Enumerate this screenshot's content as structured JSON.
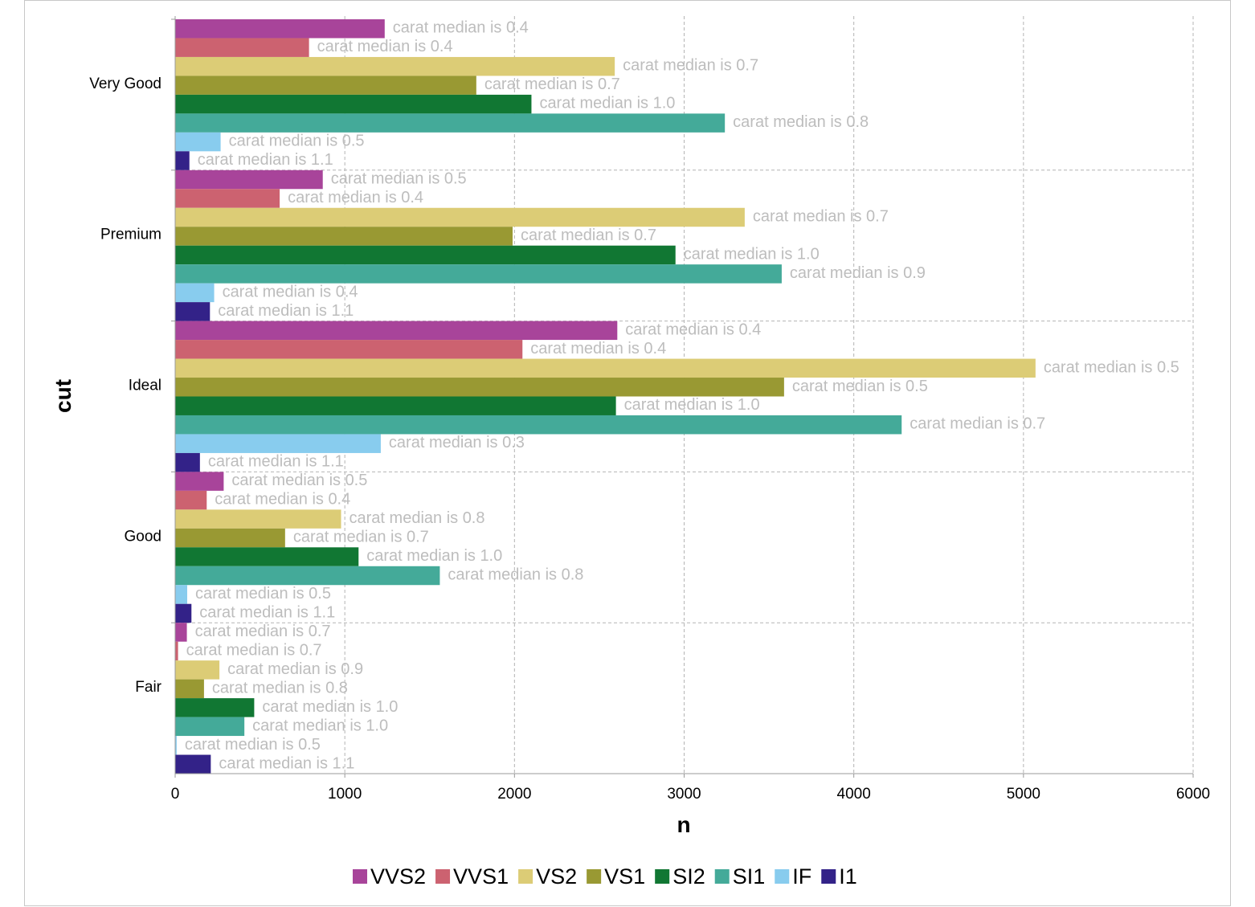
{
  "chart_data": {
    "type": "bar",
    "orientation": "horizontal",
    "xlabel": "n",
    "ylabel": "cut",
    "xlim": [
      0,
      6000
    ],
    "xticks": [
      0,
      1000,
      2000,
      3000,
      4000,
      5000,
      6000
    ],
    "grid": true,
    "legend_position": "bottom",
    "categories": [
      "Very Good",
      "Premium",
      "Ideal",
      "Good",
      "Fair"
    ],
    "series": [
      {
        "name": "VVS2",
        "color": "#a8449a",
        "values": [
          1235,
          870,
          2606,
          286,
          69
        ],
        "labels": [
          "carat median is 0.4",
          "carat median is 0.5",
          "carat median is 0.4",
          "carat median is 0.5",
          "carat median is 0.7"
        ]
      },
      {
        "name": "VVS1",
        "color": "#cc6270",
        "values": [
          789,
          616,
          2047,
          186,
          17
        ],
        "labels": [
          "carat median is 0.4",
          "carat median is 0.4",
          "carat median is 0.4",
          "carat median is 0.4",
          "carat median is 0.7"
        ]
      },
      {
        "name": "VS2",
        "color": "#dccc76",
        "values": [
          2591,
          3357,
          5071,
          978,
          261
        ],
        "labels": [
          "carat median is 0.7",
          "carat median is 0.7",
          "carat median is 0.5",
          "carat median is 0.8",
          "carat median is 0.9"
        ]
      },
      {
        "name": "VS1",
        "color": "#999933",
        "values": [
          1775,
          1989,
          3589,
          648,
          170
        ],
        "labels": [
          "carat median is 0.7",
          "carat median is 0.7",
          "carat median is 0.5",
          "carat median is 0.7",
          "carat median is 0.8"
        ]
      },
      {
        "name": "SI2",
        "color": "#117733",
        "values": [
          2100,
          2949,
          2598,
          1081,
          466
        ],
        "labels": [
          "carat median is 1.0",
          "carat median is 1.0",
          "carat median is 1.0",
          "carat median is 1.0",
          "carat median is 1.0"
        ]
      },
      {
        "name": "SI1",
        "color": "#44aa99",
        "values": [
          3240,
          3575,
          4282,
          1560,
          408
        ],
        "labels": [
          "carat median is 0.8",
          "carat median is 0.9",
          "carat median is 0.7",
          "carat median is 0.8",
          "carat median is 1.0"
        ]
      },
      {
        "name": "IF",
        "color": "#88ccee",
        "values": [
          268,
          230,
          1212,
          71,
          9
        ],
        "labels": [
          "carat median is 0.5",
          "carat median is 0.4",
          "carat median is 0.3",
          "carat median is 0.5",
          "carat median is 0.5"
        ]
      },
      {
        "name": "I1",
        "color": "#332288",
        "values": [
          84,
          205,
          146,
          96,
          210
        ],
        "labels": [
          "carat median is 1.1",
          "carat median is 1.1",
          "carat median is 1.1",
          "carat median is 1.1",
          "carat median is 1.1"
        ]
      }
    ]
  }
}
